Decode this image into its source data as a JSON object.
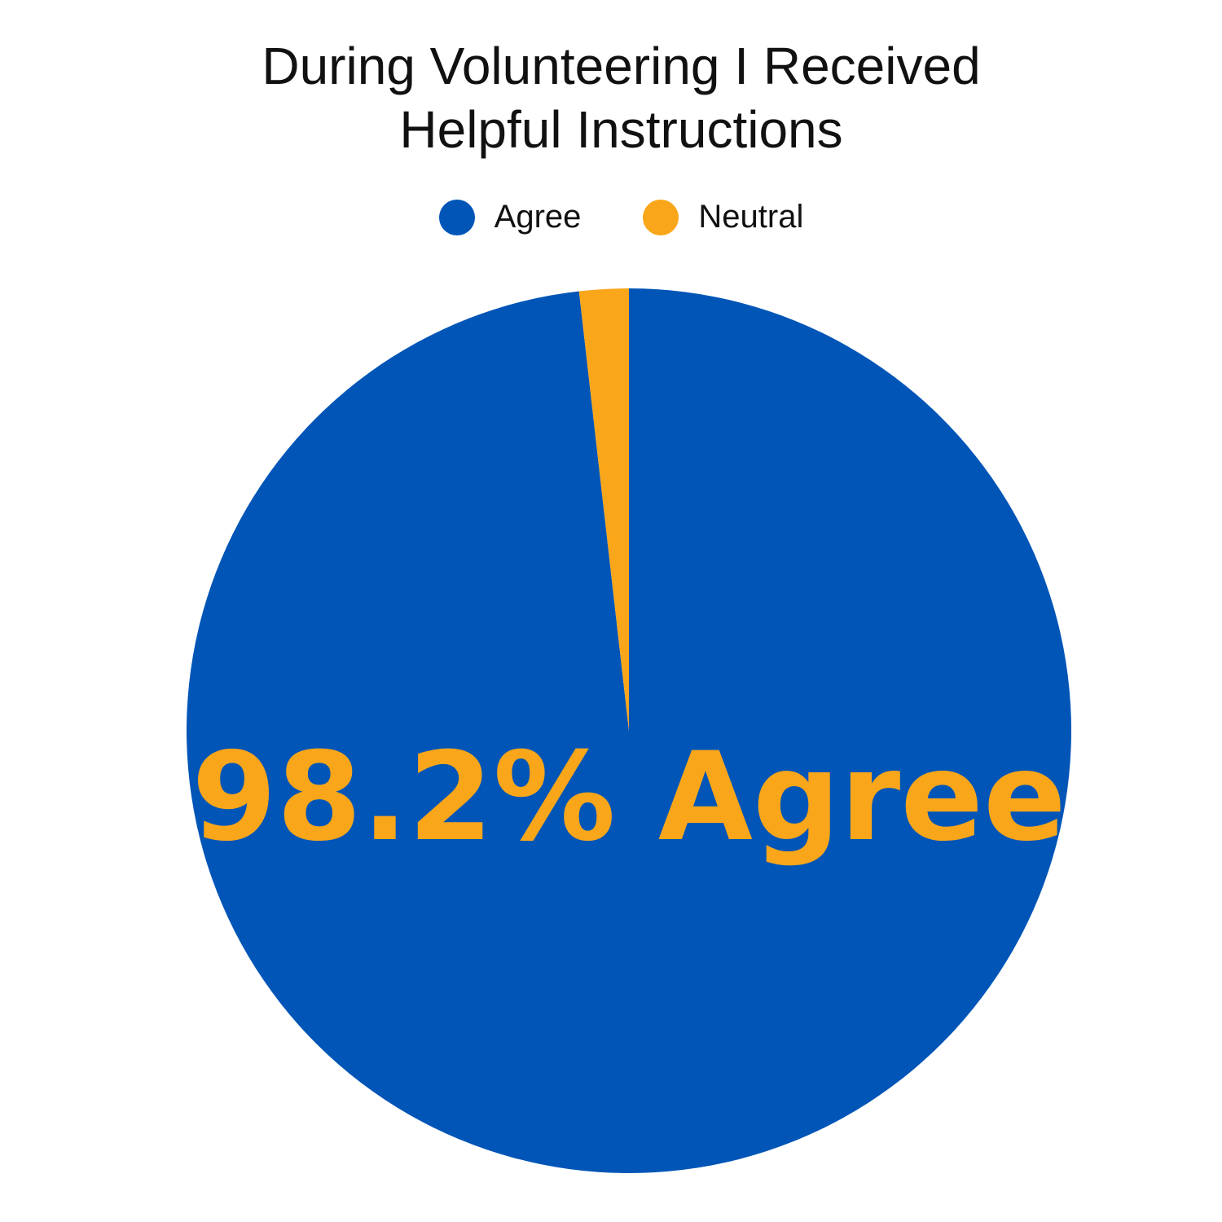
{
  "chart_data": {
    "type": "pie",
    "title_lines": [
      "During Volunteering I Received",
      "Helpful Instructions"
    ],
    "series": [
      {
        "name": "Agree",
        "value": 98.2,
        "color": "#0055B7"
      },
      {
        "name": "Neutral",
        "value": 1.8,
        "color": "#FAA61A"
      }
    ],
    "center_label": "98.2% Agree",
    "center_label_color": "#FAA61A",
    "legend": {
      "placement": "top-center",
      "entries": [
        "Agree",
        "Neutral"
      ]
    },
    "start_angle": "top, clockwise"
  }
}
